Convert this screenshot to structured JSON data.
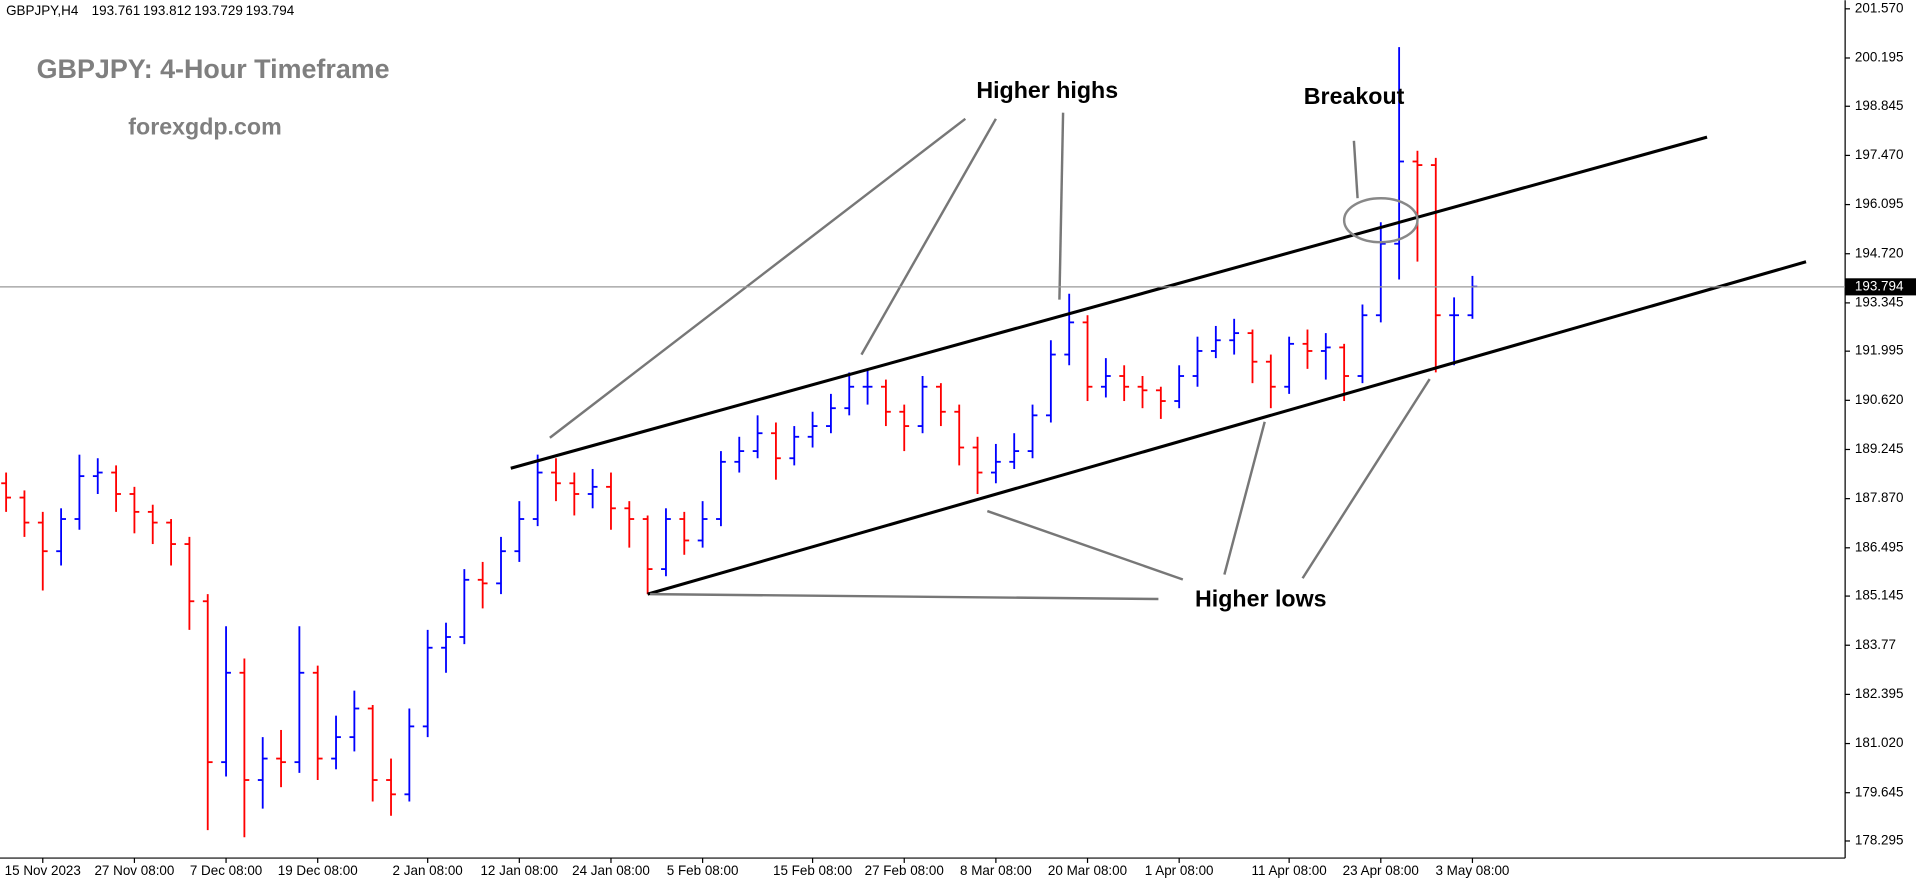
{
  "chart_data": {
    "type": "candlestick",
    "title": "GBPJPY: 4-Hour Timeframe",
    "subtitle": "forexgdp.com",
    "header": {
      "symbol": "GBPJPY,H4",
      "open": 193.761,
      "high": 193.812,
      "low": 193.729,
      "close": 193.794
    },
    "annotations": [
      "Higher highs",
      "Breakout",
      "Higher lows"
    ],
    "categories": [
      null,
      null,
      "15 Nov 2023",
      null,
      null,
      null,
      null,
      "27 Nov 08:00",
      null,
      null,
      null,
      null,
      "7 Dec 08:00",
      null,
      null,
      null,
      null,
      "19 Dec 08:00",
      null,
      null,
      null,
      null,
      null,
      "2 Jan 08:00",
      null,
      null,
      null,
      null,
      "12 Jan 08:00",
      null,
      null,
      null,
      null,
      "24 Jan 08:00",
      null,
      null,
      null,
      null,
      "5 Feb 08:00",
      null,
      null,
      null,
      null,
      null,
      "15 Feb 08:00",
      null,
      null,
      null,
      null,
      "27 Feb 08:00",
      null,
      null,
      null,
      null,
      "8 Mar 08:00",
      null,
      null,
      null,
      null,
      "20 Mar 08:00",
      null,
      null,
      null,
      null,
      "1 Apr 08:00",
      null,
      null,
      null,
      null,
      null,
      "11 Apr 08:00",
      null,
      null,
      null,
      null,
      "23 Apr 08:00",
      null,
      null,
      null,
      null,
      "3 May 08:00"
    ],
    "open": [
      188.3,
      187.9,
      187.2,
      186.4,
      187.3,
      188.5,
      188.6,
      188.0,
      187.5,
      187.2,
      186.6,
      185.0,
      180.5,
      183.0,
      180.0,
      180.6,
      180.5,
      183.0,
      180.6,
      181.2,
      182.0,
      180.0,
      179.6,
      181.5,
      183.7,
      184.0,
      185.6,
      185.5,
      186.4,
      187.3,
      188.6,
      188.3,
      188.0,
      188.2,
      187.6,
      187.3,
      185.9,
      187.3,
      186.7,
      187.3,
      188.9,
      189.2,
      189.7,
      189.0,
      189.6,
      189.9,
      190.4,
      191.0,
      191.0,
      190.3,
      189.9,
      191.0,
      190.3,
      189.3,
      188.6,
      188.9,
      189.2,
      190.2,
      191.9,
      192.8,
      191.0,
      191.3,
      191.0,
      190.9,
      190.6,
      191.3,
      192.0,
      192.3,
      192.5,
      191.7,
      191.0,
      192.2,
      192.0,
      192.1,
      191.3,
      193.0,
      195.0,
      197.3,
      197.2,
      193.0,
      193.0
    ],
    "high": [
      188.6,
      188.1,
      187.5,
      187.6,
      189.1,
      189.0,
      188.8,
      188.2,
      187.7,
      187.3,
      186.8,
      185.2,
      184.3,
      183.4,
      181.2,
      181.4,
      184.3,
      183.2,
      181.8,
      182.5,
      182.1,
      180.6,
      182.0,
      184.2,
      184.4,
      185.9,
      186.1,
      186.8,
      187.8,
      189.1,
      189.0,
      188.6,
      188.7,
      188.6,
      187.8,
      187.4,
      187.6,
      187.5,
      187.8,
      189.2,
      189.6,
      190.2,
      190.0,
      189.9,
      190.3,
      190.8,
      191.4,
      191.5,
      191.2,
      190.5,
      191.3,
      191.1,
      190.5,
      189.6,
      189.4,
      189.7,
      190.5,
      192.3,
      193.6,
      193.0,
      191.8,
      191.6,
      191.3,
      191.0,
      191.6,
      192.4,
      192.7,
      192.9,
      192.6,
      191.9,
      192.4,
      192.6,
      192.5,
      192.2,
      193.3,
      195.6,
      200.5,
      197.6,
      197.4,
      193.5,
      194.1
    ],
    "low": [
      187.5,
      186.8,
      185.3,
      186.0,
      187.0,
      188.0,
      187.5,
      186.9,
      186.6,
      186.0,
      184.2,
      178.6,
      180.1,
      178.4,
      179.2,
      179.8,
      180.2,
      180.0,
      180.3,
      180.8,
      179.4,
      179.0,
      179.4,
      181.2,
      183.0,
      183.8,
      184.8,
      185.2,
      186.1,
      187.1,
      187.8,
      187.4,
      187.6,
      187.0,
      186.5,
      185.2,
      185.7,
      186.3,
      186.5,
      187.1,
      188.6,
      189.0,
      188.4,
      188.8,
      189.3,
      189.7,
      190.2,
      190.5,
      189.9,
      189.2,
      189.7,
      189.9,
      188.8,
      188.0,
      188.3,
      188.7,
      189.0,
      190.0,
      191.6,
      190.6,
      190.7,
      190.6,
      190.4,
      190.1,
      190.4,
      191.0,
      191.8,
      191.9,
      191.1,
      190.4,
      190.8,
      191.5,
      191.2,
      190.6,
      191.1,
      192.8,
      194.0,
      194.5,
      191.4,
      191.6,
      192.9
    ],
    "close": [
      187.9,
      187.2,
      186.4,
      187.3,
      188.5,
      188.6,
      188.0,
      187.5,
      187.2,
      186.6,
      185.0,
      180.5,
      183.0,
      180.0,
      180.6,
      180.5,
      183.0,
      180.6,
      181.2,
      182.0,
      180.0,
      179.6,
      181.5,
      183.7,
      184.0,
      185.6,
      185.5,
      186.4,
      187.3,
      188.6,
      188.3,
      188.0,
      188.2,
      187.6,
      187.3,
      185.9,
      187.3,
      186.7,
      187.3,
      188.9,
      189.2,
      189.7,
      189.0,
      189.6,
      189.9,
      190.4,
      191.0,
      191.0,
      190.3,
      189.9,
      191.0,
      190.3,
      189.3,
      188.6,
      188.9,
      189.2,
      190.2,
      191.9,
      192.8,
      191.0,
      191.3,
      191.0,
      190.9,
      190.6,
      191.3,
      192.0,
      192.3,
      192.5,
      191.7,
      191.0,
      192.2,
      192.0,
      192.1,
      191.3,
      193.0,
      195.0,
      197.3,
      197.2,
      193.0,
      193.0,
      193.8
    ],
    "up_color": "#0000ff",
    "down_color": "#ff0000",
    "ylim": [
      177.817,
      201.741
    ],
    "yticks": [
      {
        "value": 178.295,
        "label": "178.295"
      },
      179.645,
      {
        "value": 181.02,
        "label": "181.020"
      },
      182.395,
      183.77,
      185.145,
      186.495,
      {
        "value": 187.87,
        "label": "187.870"
      },
      189.245,
      {
        "value": 190.62,
        "label": "190.620"
      },
      191.995,
      193.345,
      {
        "value": 194.72,
        "label": "194.720"
      },
      196.095,
      {
        "value": 197.47,
        "label": "197.470"
      },
      198.845,
      200.195,
      {
        "value": 201.57,
        "label": "201.570"
      }
    ]
  }
}
